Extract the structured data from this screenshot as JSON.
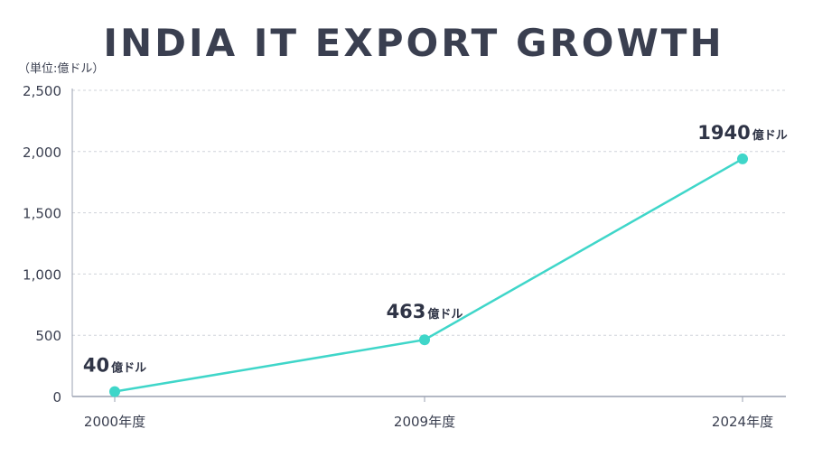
{
  "chart_data": {
    "type": "line",
    "title": "INDIA IT EXPORT GROWTH",
    "unit_label": "（単位:億ドル）",
    "categories": [
      "2000年度",
      "2009年度",
      "2024年度"
    ],
    "values": [
      40,
      463,
      1940
    ],
    "data_labels": [
      {
        "number": "40",
        "unit": "億ドル"
      },
      {
        "number": "463",
        "unit": "億ドル"
      },
      {
        "number": "1940",
        "unit": "億ドル"
      }
    ],
    "yticks": [
      "0",
      "500",
      "1,000",
      "1,500",
      "2,000",
      "2,500"
    ],
    "ylim": [
      0,
      2500
    ],
    "grid": true,
    "legend": "none",
    "colors": {
      "line": "#3fd6c9",
      "marker": "#3fd6c9",
      "text": "#3a3f50",
      "grid": "#cfd3da",
      "axis": "#9aa0b0"
    }
  }
}
